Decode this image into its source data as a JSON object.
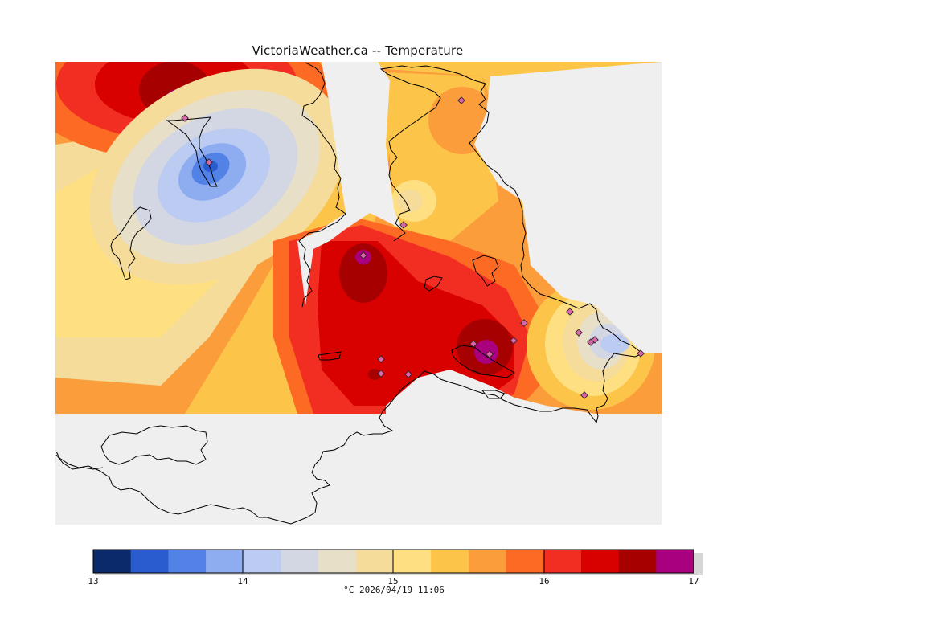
{
  "title": "VictoriaWeather.ca -- Temperature",
  "colorbar": {
    "tick_labels": [
      "13",
      "14",
      "15",
      "16",
      "17"
    ],
    "colors": [
      "#0b2a6b",
      "#2a5bcf",
      "#5282e5",
      "#8eacf0",
      "#bccbf2",
      "#d3d6e3",
      "#e8dfc8",
      "#f6dc9a",
      "#fee083",
      "#fcc54a",
      "#fc9d3c",
      "#fc6a24",
      "#f22e23",
      "#d90000",
      "#a60000",
      "#a8007e"
    ],
    "units_label": "°C  2026/04/19 11:06"
  },
  "chart_data": {
    "type": "heatmap",
    "title": "VictoriaWeather.ca -- Temperature",
    "variable": "Temperature",
    "units": "°C",
    "valid_time": "2026/04/19 11:06",
    "scale_range": [
      13,
      17
    ],
    "scale_ticks": [
      13,
      14,
      15,
      16,
      17
    ],
    "levels": 16,
    "hot_spots_approx_c": [
      16.9,
      16.9,
      16.9
    ],
    "cold_spots_approx_c": [
      13.4,
      14.3
    ]
  },
  "map": {
    "background": "#efefef"
  }
}
